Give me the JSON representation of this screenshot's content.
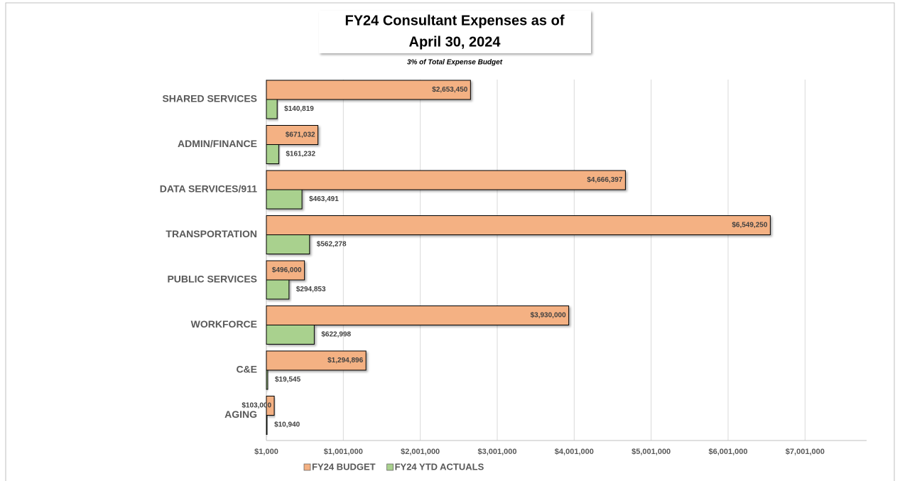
{
  "chart_data": {
    "type": "bar",
    "orientation": "horizontal",
    "title": "FY24 Consultant Expenses as of April 30, 2024",
    "subtitle": "3% of Total Expense Budget",
    "categories": [
      "SHARED SERVICES",
      "ADMIN/FINANCE",
      "DATA SERVICES/911",
      "TRANSPORTATION",
      "PUBLIC SERVICES",
      "WORKFORCE",
      "C&E",
      "AGING"
    ],
    "series": [
      {
        "name": "FY24 BUDGET",
        "color": "#f4b183",
        "values": [
          2653450,
          671032,
          4666397,
          6549250,
          496000,
          3930000,
          1294896,
          103000
        ],
        "value_labels": [
          "$2,653,450",
          "$671,032",
          "$4,666,397",
          "$6,549,250",
          "$496,000",
          "$3,930,000",
          "$1,294,896",
          "$103,000"
        ]
      },
      {
        "name": "FY24 YTD ACTUALS",
        "color": "#a9d18e",
        "values": [
          140819,
          161232,
          463491,
          562278,
          294853,
          622998,
          19545,
          10940
        ],
        "value_labels": [
          "$140,819",
          "$161,232",
          "$463,491",
          "$562,278",
          "$294,853",
          "$622,998",
          "$19,545",
          "$10,940"
        ]
      }
    ],
    "xlim": [
      1000,
      7801000
    ],
    "xticks": [
      {
        "value": 1000,
        "label": "$1,000"
      },
      {
        "value": 1001000,
        "label": "$1,001,000"
      },
      {
        "value": 2001000,
        "label": "$2,001,000"
      },
      {
        "value": 3001000,
        "label": "$3,001,000"
      },
      {
        "value": 4001000,
        "label": "$4,001,000"
      },
      {
        "value": 5001000,
        "label": "$5,001,000"
      },
      {
        "value": 6001000,
        "label": "$6,001,000"
      },
      {
        "value": 7001000,
        "label": "$7,001,000"
      }
    ],
    "grid": true,
    "legend": "bottom"
  }
}
